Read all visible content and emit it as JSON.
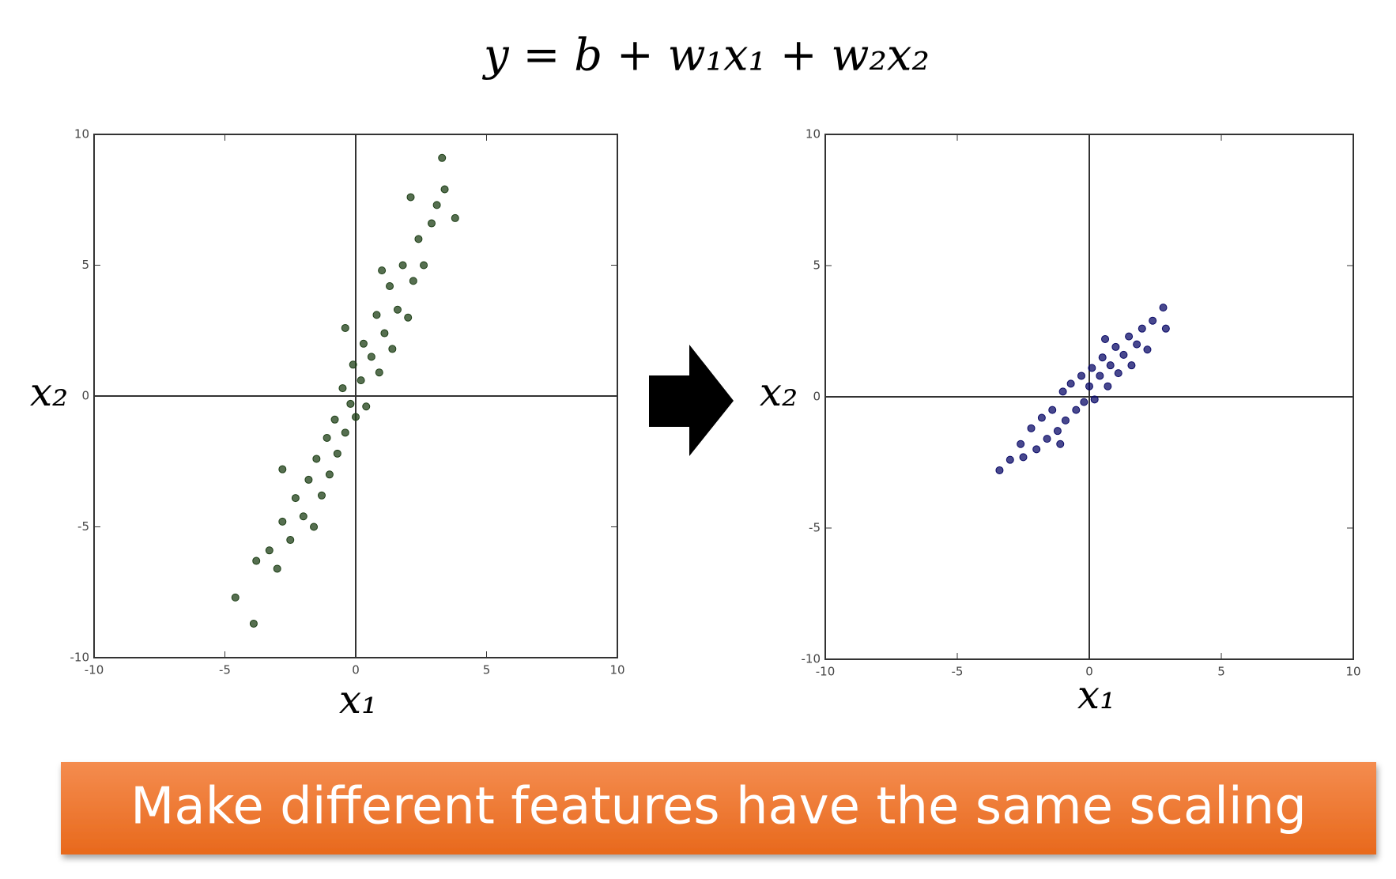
{
  "formula": "y = b + w₁x₁ + w₂x₂",
  "chart_data": [
    {
      "type": "scatter",
      "color": "#1d3f16",
      "xlabel": "x₁",
      "ylabel": "x₂",
      "xlim": [
        -10,
        10
      ],
      "ylim": [
        -10,
        10
      ],
      "xticks": [
        -10,
        -5,
        0,
        5,
        10
      ],
      "yticks": [
        -10,
        -5,
        0,
        5,
        10
      ],
      "zero_lines": true,
      "grid": false,
      "x": [
        -4.6,
        -3.9,
        -3.8,
        -3.3,
        -3.0,
        -2.8,
        -2.5,
        -2.3,
        -2.0,
        -1.8,
        -1.6,
        -1.5,
        -1.3,
        -1.1,
        -1.0,
        -0.8,
        -0.7,
        -0.5,
        -0.4,
        -0.2,
        -0.1,
        0,
        0.2,
        0.3,
        0.4,
        0.6,
        0.8,
        0.9,
        1.1,
        1.3,
        1.4,
        1.6,
        1.8,
        2.0,
        2.2,
        2.4,
        2.6,
        2.9,
        3.1,
        3.4,
        3.3,
        3.8,
        2.1,
        -2.8,
        1.0,
        -0.4
      ],
      "y": [
        -7.7,
        -8.7,
        -6.3,
        -5.9,
        -6.6,
        -4.8,
        -5.5,
        -3.9,
        -4.6,
        -3.2,
        -5.0,
        -2.4,
        -3.8,
        -1.6,
        -3.0,
        -0.9,
        -2.2,
        0.3,
        -1.4,
        -0.3,
        1.2,
        -0.8,
        0.6,
        2.0,
        -0.4,
        1.5,
        3.1,
        0.9,
        2.4,
        4.2,
        1.8,
        3.3,
        5.0,
        3.0,
        4.4,
        6.0,
        5.0,
        6.6,
        7.3,
        7.9,
        9.1,
        6.8,
        7.6,
        -2.8,
        4.8,
        2.6
      ]
    },
    {
      "type": "scatter",
      "color": "#0b0b68",
      "xlabel": "x₁",
      "ylabel": "x₂",
      "xlim": [
        -10,
        10
      ],
      "ylim": [
        -10,
        10
      ],
      "xticks": [
        -10,
        -5,
        0,
        5,
        10
      ],
      "yticks": [
        -10,
        -5,
        0,
        5,
        10
      ],
      "zero_lines": true,
      "grid": false,
      "x": [
        -3.4,
        -3.0,
        -2.6,
        -2.5,
        -2.2,
        -2.0,
        -1.8,
        -1.6,
        -1.4,
        -1.2,
        -1.0,
        -0.9,
        -0.7,
        -0.5,
        -0.3,
        -0.2,
        0,
        0.1,
        0.2,
        0.4,
        0.5,
        0.7,
        0.8,
        1.0,
        1.1,
        1.3,
        1.5,
        1.6,
        1.8,
        2.0,
        2.2,
        2.4,
        2.8,
        2.9,
        -1.1,
        0.6
      ],
      "y": [
        -2.8,
        -2.4,
        -1.8,
        -2.3,
        -1.2,
        -2.0,
        -0.8,
        -1.6,
        -0.5,
        -1.3,
        0.2,
        -0.9,
        0.5,
        -0.5,
        0.8,
        -0.2,
        0.4,
        1.1,
        -0.1,
        0.8,
        1.5,
        0.4,
        1.2,
        1.9,
        0.9,
        1.6,
        2.3,
        1.2,
        2.0,
        2.6,
        1.8,
        2.9,
        3.4,
        2.6,
        -1.8,
        2.2
      ]
    }
  ],
  "banner": "Make different features have the same scaling"
}
